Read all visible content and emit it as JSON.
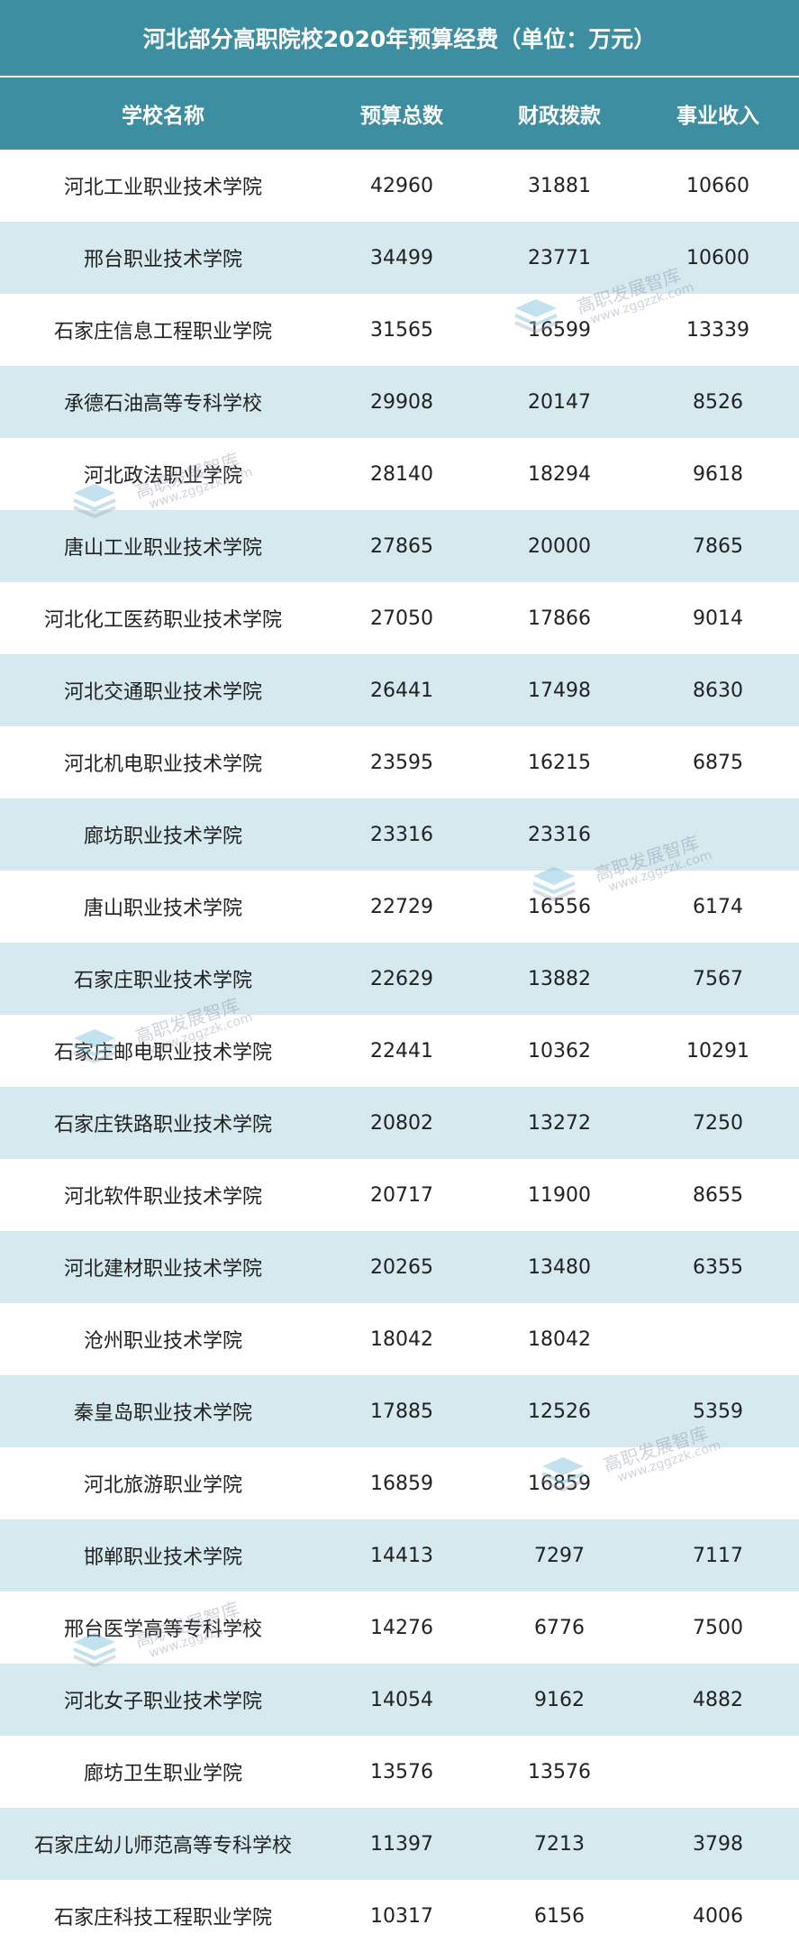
{
  "title": "河北部分高职院校2020年预算经费（单位：万元）",
  "columns": [
    "学校名称",
    "预算总数",
    "财政拨款",
    "事业收入"
  ],
  "rows": [
    [
      "河北工业职业技术学院",
      "42960",
      "31881",
      "10660"
    ],
    [
      "邢台职业技术学院",
      "34499",
      "23771",
      "10600"
    ],
    [
      "石家庄信息工程职业学院",
      "31565",
      "16599",
      "13339"
    ],
    [
      "承德石油高等专科学校",
      "29908",
      "20147",
      "8526"
    ],
    [
      "河北政法职业学院",
      "28140",
      "18294",
      "9618"
    ],
    [
      "唐山工业职业技术学院",
      "27865",
      "20000",
      "7865"
    ],
    [
      "河北化工医药职业技术学院",
      "27050",
      "17866",
      "9014"
    ],
    [
      "河北交通职业技术学院",
      "26441",
      "17498",
      "8630"
    ],
    [
      "河北机电职业技术学院",
      "23595",
      "16215",
      "6875"
    ],
    [
      "廊坊职业技术学院",
      "23316",
      "23316",
      ""
    ],
    [
      "唐山职业技术学院",
      "22729",
      "16556",
      "6174"
    ],
    [
      "石家庄职业技术学院",
      "22629",
      "13882",
      "7567"
    ],
    [
      "石家庄邮电职业技术学院",
      "22441",
      "10362",
      "10291"
    ],
    [
      "石家庄铁路职业技术学院",
      "20802",
      "13272",
      "7250"
    ],
    [
      "河北软件职业技术学院",
      "20717",
      "11900",
      "8655"
    ],
    [
      "河北建材职业技术学院",
      "20265",
      "13480",
      "6355"
    ],
    [
      "沧州职业技术学院",
      "18042",
      "18042",
      ""
    ],
    [
      "秦皇岛职业技术学院",
      "17885",
      "12526",
      "5359"
    ],
    [
      "河北旅游职业学院",
      "16859",
      "16859",
      ""
    ],
    [
      "邯郸职业技术学院",
      "14413",
      "7297",
      "7117"
    ],
    [
      "邢台医学高等专科学校",
      "14276",
      "6776",
      "7500"
    ],
    [
      "河北女子职业技术学院",
      "14054",
      "9162",
      "4882"
    ],
    [
      "廊坊卫生职业学院",
      "13576",
      "13576",
      ""
    ],
    [
      "石家庄幼儿师范高等专科学校",
      "11397",
      "7213",
      "3798"
    ],
    [
      "石家庄科技工程职业学院",
      "10317",
      "6156",
      "4006"
    ]
  ],
  "watermark": {
    "name": "高职发展智库",
    "url": "www.zggzzk.com"
  },
  "colors": {
    "header": "#3e8ea2",
    "stripe": "#d5e9ef"
  }
}
